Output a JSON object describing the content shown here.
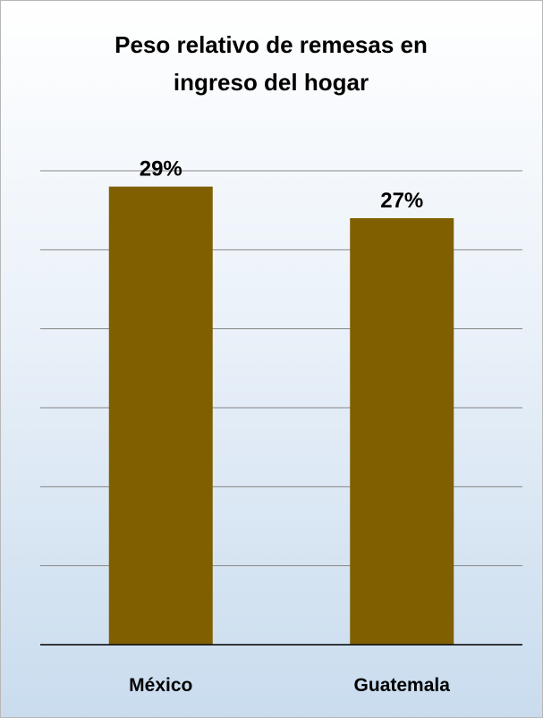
{
  "chart_data": {
    "type": "bar",
    "title_lines": [
      "Peso relativo de remesas en",
      "ingreso del hogar"
    ],
    "categories": [
      "México",
      "Guatemala"
    ],
    "values": [
      29,
      27
    ],
    "value_labels": [
      "29%",
      "27%"
    ],
    "ylim": [
      0,
      30
    ],
    "ytick_step": 5,
    "grid": true,
    "legend": "none",
    "colors": {
      "bar": "#7f5f00",
      "grid": "#868686",
      "axis": "#000000",
      "background_top": "#ffffff",
      "background_bottom": "#c9dcee"
    }
  }
}
